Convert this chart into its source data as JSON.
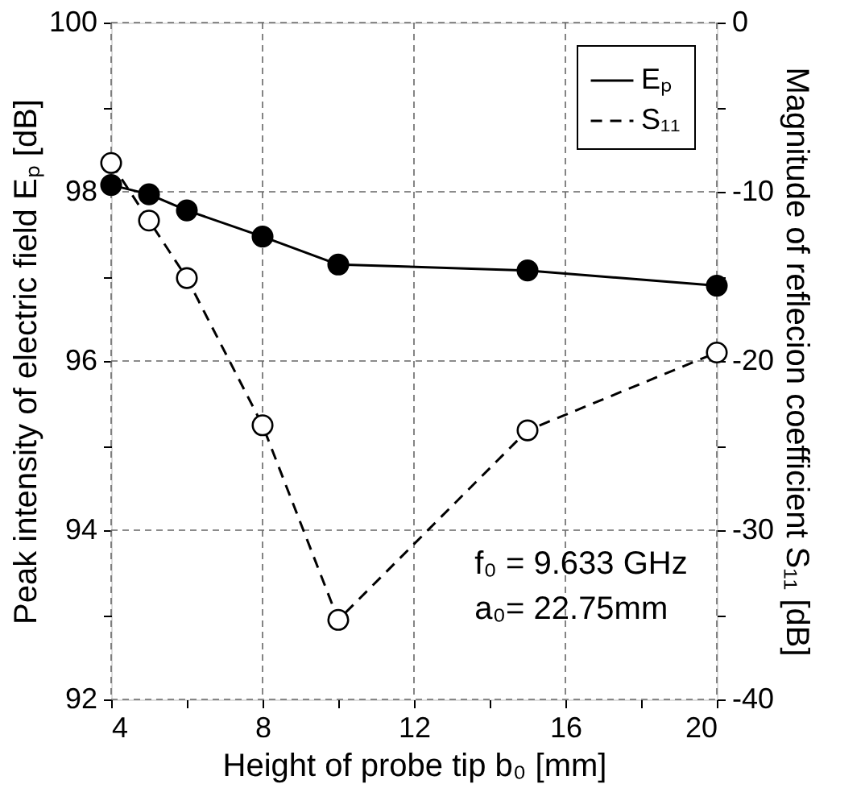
{
  "chart_data": {
    "type": "line",
    "xlabel": "Height of probe tip b₀ [mm]",
    "ylabel": "Peak intensity of electric field Eₚ [dB]",
    "y2label": "Magnitude of reflecion coefficient S₁₁ [dB]",
    "x": [
      4,
      5,
      6,
      8,
      10,
      15,
      20
    ],
    "series": [
      {
        "name": "Eₚ",
        "color": "#000000",
        "line_style": "solid",
        "values": [
          98.08,
          97.97,
          97.78,
          97.47,
          97.14,
          97.07,
          96.89
        ]
      },
      {
        "name": "S₁₁",
        "color": "#000000",
        "line_style": "dashed",
        "axis": "y2",
        "values": [
          -8.3,
          -11.7,
          -15.1,
          -23.8,
          -35.3,
          -24.1,
          -19.5
        ]
      }
    ],
    "xlim": [
      4,
      20
    ],
    "xticks": [
      4,
      {
        "value": 6,
        "label": null
      },
      8,
      {
        "value": 10,
        "label": null
      },
      12,
      {
        "value": 14,
        "label": null
      },
      16,
      {
        "value": 18,
        "label": null
      },
      20
    ],
    "ylim": [
      92,
      100
    ],
    "yticks": [
      92,
      {
        "value": 93,
        "label": null
      },
      94,
      {
        "value": 95,
        "label": null
      },
      96,
      {
        "value": 97,
        "label": null
      },
      98,
      {
        "value": 99,
        "label": null
      },
      100
    ],
    "y2lim": [
      -40,
      0
    ],
    "y2ticks": [
      -40,
      {
        "value": -35,
        "label": null
      },
      -30,
      {
        "value": -25,
        "label": null
      },
      -20,
      {
        "value": -15,
        "label": null
      },
      -10,
      {
        "value": -5,
        "label": null
      },
      0
    ],
    "grid": true,
    "legend": "top right",
    "marker": "circle",
    "annotations": [
      "f₀ = 9.633 GHz",
      "a₀= 22.75mm"
    ]
  }
}
